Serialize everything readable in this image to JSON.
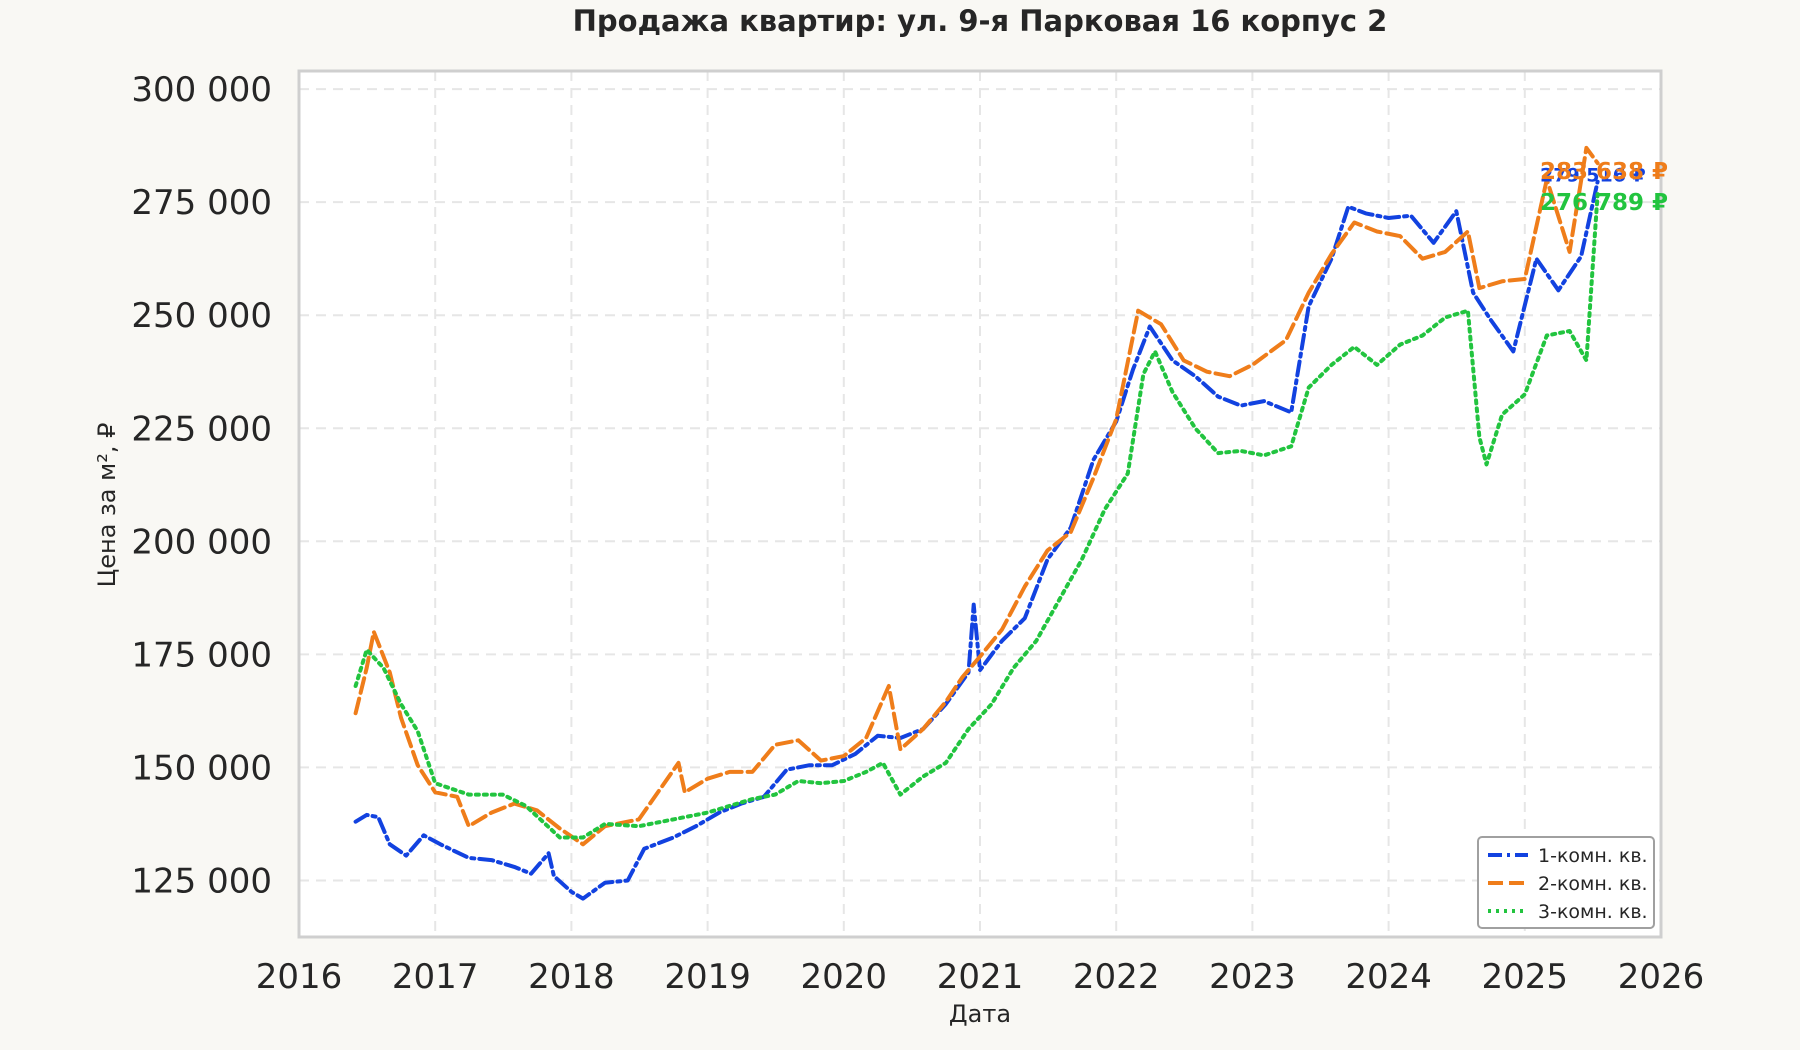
{
  "chart_data": {
    "type": "line",
    "title": "Продажа квартир: ул. 9-я Парковая 16 корпус 2",
    "xlabel": "Дата",
    "ylabel": "Цена за м², ₽",
    "x_ticks": [
      "2016",
      "2017",
      "2018",
      "2019",
      "2020",
      "2021",
      "2022",
      "2023",
      "2024",
      "2025",
      "2026"
    ],
    "y_ticks": [
      "125 000",
      "150 000",
      "175 000",
      "200 000",
      "225 000",
      "250 000",
      "275 000",
      "300 000"
    ],
    "y_tick_values": [
      125000,
      150000,
      175000,
      200000,
      225000,
      250000,
      275000,
      300000
    ],
    "xlim": [
      "2016-01-01",
      "2026-01-01"
    ],
    "ylim": [
      112500,
      304000
    ],
    "grid": true,
    "legend_position": "lower-right",
    "series": [
      {
        "name": "1-комн. кв.",
        "color": "#1242e0",
        "style": "dashdot",
        "end_label": "279 516 ₽",
        "points": [
          [
            "2016-06-01",
            138000
          ],
          [
            "2016-07-01",
            139500
          ],
          [
            "2016-08-01",
            139000
          ],
          [
            "2016-09-01",
            133000
          ],
          [
            "2016-10-15",
            130500
          ],
          [
            "2016-12-01",
            135000
          ],
          [
            "2017-01-15",
            133000
          ],
          [
            "2017-04-01",
            130000
          ],
          [
            "2017-06-01",
            129500
          ],
          [
            "2017-08-01",
            128000
          ],
          [
            "2017-09-15",
            126500
          ],
          [
            "2017-11-01",
            131000
          ],
          [
            "2017-11-15",
            126000
          ],
          [
            "2018-01-01",
            122500
          ],
          [
            "2018-02-01",
            121000
          ],
          [
            "2018-04-01",
            124500
          ],
          [
            "2018-06-01",
            125000
          ],
          [
            "2018-07-15",
            132000
          ],
          [
            "2018-10-01",
            134500
          ],
          [
            "2018-12-01",
            137000
          ],
          [
            "2019-02-01",
            140000
          ],
          [
            "2019-04-01",
            142000
          ],
          [
            "2019-06-01",
            143500
          ],
          [
            "2019-08-01",
            149500
          ],
          [
            "2019-10-01",
            150500
          ],
          [
            "2019-12-01",
            150500
          ],
          [
            "2020-02-01",
            153000
          ],
          [
            "2020-04-01",
            157000
          ],
          [
            "2020-06-01",
            156500
          ],
          [
            "2020-08-01",
            158500
          ],
          [
            "2020-10-01",
            164000
          ],
          [
            "2020-12-01",
            171000
          ],
          [
            "2020-12-15",
            186000
          ],
          [
            "2021-01-01",
            171500
          ],
          [
            "2021-03-01",
            178000
          ],
          [
            "2021-05-01",
            183000
          ],
          [
            "2021-07-01",
            196000
          ],
          [
            "2021-09-01",
            203000
          ],
          [
            "2021-11-01",
            218000
          ],
          [
            "2022-01-01",
            226500
          ],
          [
            "2022-02-15",
            238000
          ],
          [
            "2022-04-01",
            247500
          ],
          [
            "2022-06-01",
            240000
          ],
          [
            "2022-08-01",
            236500
          ],
          [
            "2022-10-01",
            232000
          ],
          [
            "2022-12-01",
            230000
          ],
          [
            "2023-02-01",
            231000
          ],
          [
            "2023-04-15",
            228500
          ],
          [
            "2023-06-01",
            252000
          ],
          [
            "2023-08-01",
            262500
          ],
          [
            "2023-09-15",
            274000
          ],
          [
            "2023-11-01",
            272500
          ],
          [
            "2024-01-01",
            271500
          ],
          [
            "2024-03-01",
            272000
          ],
          [
            "2024-05-01",
            266000
          ],
          [
            "2024-07-01",
            273000
          ],
          [
            "2024-08-15",
            255000
          ],
          [
            "2024-10-01",
            249000
          ],
          [
            "2024-12-01",
            242000
          ],
          [
            "2025-02-01",
            262500
          ],
          [
            "2025-04-01",
            255500
          ],
          [
            "2025-06-01",
            263000
          ],
          [
            "2025-07-15",
            279516
          ]
        ]
      },
      {
        "name": "2-комн. кв.",
        "color": "#ef7d1a",
        "style": "dashed",
        "end_label": "283 638 ₽",
        "points": [
          [
            "2016-06-01",
            162000
          ],
          [
            "2016-07-01",
            172000
          ],
          [
            "2016-07-20",
            180000
          ],
          [
            "2016-09-01",
            171000
          ],
          [
            "2016-10-01",
            161000
          ],
          [
            "2016-11-15",
            150500
          ],
          [
            "2017-01-01",
            144500
          ],
          [
            "2017-03-01",
            143500
          ],
          [
            "2017-04-01",
            137000
          ],
          [
            "2017-06-01",
            140000
          ],
          [
            "2017-08-01",
            142000
          ],
          [
            "2017-10-01",
            140500
          ],
          [
            "2017-12-01",
            136500
          ],
          [
            "2018-02-01",
            133000
          ],
          [
            "2018-04-01",
            137000
          ],
          [
            "2018-07-01",
            138500
          ],
          [
            "2018-10-15",
            151000
          ],
          [
            "2018-11-01",
            144500
          ],
          [
            "2019-01-01",
            147500
          ],
          [
            "2019-03-01",
            149000
          ],
          [
            "2019-05-01",
            149000
          ],
          [
            "2019-07-01",
            155000
          ],
          [
            "2019-09-01",
            156000
          ],
          [
            "2019-11-01",
            151500
          ],
          [
            "2020-01-01",
            152500
          ],
          [
            "2020-03-01",
            156500
          ],
          [
            "2020-05-01",
            168000
          ],
          [
            "2020-06-01",
            154000
          ],
          [
            "2020-08-01",
            158500
          ],
          [
            "2020-10-01",
            164500
          ],
          [
            "2020-11-15",
            170000
          ],
          [
            "2021-01-01",
            174500
          ],
          [
            "2021-03-01",
            180500
          ],
          [
            "2021-05-01",
            190000
          ],
          [
            "2021-07-01",
            198000
          ],
          [
            "2021-09-01",
            202000
          ],
          [
            "2021-11-01",
            214000
          ],
          [
            "2022-01-01",
            227000
          ],
          [
            "2022-03-01",
            251000
          ],
          [
            "2022-05-01",
            248000
          ],
          [
            "2022-07-01",
            240000
          ],
          [
            "2022-09-01",
            237500
          ],
          [
            "2022-11-01",
            236500
          ],
          [
            "2023-01-01",
            239000
          ],
          [
            "2023-04-01",
            244500
          ],
          [
            "2023-06-01",
            255000
          ],
          [
            "2023-08-01",
            263500
          ],
          [
            "2023-10-01",
            270500
          ],
          [
            "2023-12-01",
            268500
          ],
          [
            "2024-02-01",
            267500
          ],
          [
            "2024-04-01",
            262500
          ],
          [
            "2024-06-01",
            264000
          ],
          [
            "2024-08-01",
            268500
          ],
          [
            "2024-09-01",
            256000
          ],
          [
            "2024-11-01",
            257500
          ],
          [
            "2025-01-01",
            258000
          ],
          [
            "2025-03-01",
            280000
          ],
          [
            "2025-05-01",
            264000
          ],
          [
            "2025-06-15",
            287000
          ],
          [
            "2025-07-15",
            283638
          ]
        ]
      },
      {
        "name": "3-комн. кв.",
        "color": "#22c43f",
        "style": "dotted",
        "end_label": "276 789 ₽",
        "points": [
          [
            "2016-06-01",
            168000
          ],
          [
            "2016-07-01",
            176000
          ],
          [
            "2016-08-15",
            172000
          ],
          [
            "2016-10-01",
            164000
          ],
          [
            "2016-11-15",
            158000
          ],
          [
            "2017-01-01",
            146500
          ],
          [
            "2017-04-01",
            144000
          ],
          [
            "2017-07-01",
            144000
          ],
          [
            "2017-09-01",
            141500
          ],
          [
            "2017-12-01",
            134500
          ],
          [
            "2018-02-01",
            134500
          ],
          [
            "2018-04-01",
            137500
          ],
          [
            "2018-07-01",
            137000
          ],
          [
            "2018-10-01",
            138500
          ],
          [
            "2019-01-01",
            140000
          ],
          [
            "2019-03-01",
            141500
          ],
          [
            "2019-05-01",
            143000
          ],
          [
            "2019-07-01",
            144000
          ],
          [
            "2019-09-01",
            147000
          ],
          [
            "2019-11-01",
            146500
          ],
          [
            "2020-01-01",
            147000
          ],
          [
            "2020-03-01",
            149000
          ],
          [
            "2020-04-15",
            151000
          ],
          [
            "2020-06-01",
            144000
          ],
          [
            "2020-08-01",
            148000
          ],
          [
            "2020-10-01",
            151000
          ],
          [
            "2020-12-01",
            158500
          ],
          [
            "2021-02-01",
            164000
          ],
          [
            "2021-04-01",
            172000
          ],
          [
            "2021-06-01",
            178000
          ],
          [
            "2021-08-01",
            187000
          ],
          [
            "2021-10-01",
            196000
          ],
          [
            "2021-12-01",
            207000
          ],
          [
            "2022-02-01",
            215000
          ],
          [
            "2022-03-15",
            237000
          ],
          [
            "2022-04-15",
            242000
          ],
          [
            "2022-06-01",
            233000
          ],
          [
            "2022-08-01",
            225000
          ],
          [
            "2022-10-01",
            219500
          ],
          [
            "2022-12-01",
            220000
          ],
          [
            "2023-02-01",
            219000
          ],
          [
            "2023-04-15",
            221000
          ],
          [
            "2023-06-01",
            234000
          ],
          [
            "2023-08-01",
            239000
          ],
          [
            "2023-10-01",
            243000
          ],
          [
            "2023-12-01",
            239000
          ],
          [
            "2024-02-01",
            243500
          ],
          [
            "2024-04-01",
            245500
          ],
          [
            "2024-06-01",
            249500
          ],
          [
            "2024-08-01",
            251000
          ],
          [
            "2024-09-01",
            223000
          ],
          [
            "2024-09-20",
            217000
          ],
          [
            "2024-11-01",
            228000
          ],
          [
            "2025-01-01",
            232500
          ],
          [
            "2025-03-01",
            245500
          ],
          [
            "2025-05-01",
            246500
          ],
          [
            "2025-06-15",
            240000
          ],
          [
            "2025-07-15",
            276789
          ]
        ]
      }
    ]
  }
}
